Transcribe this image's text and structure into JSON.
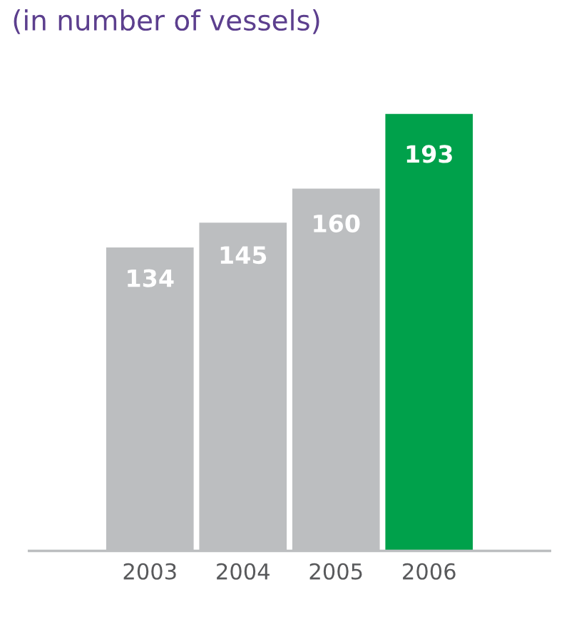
{
  "chart_data": {
    "type": "bar",
    "title": "(in number of vessels)",
    "categories": [
      "2003",
      "2004",
      "2005",
      "2006"
    ],
    "values": [
      134,
      145,
      160,
      193
    ],
    "colors": [
      "#bcbec0",
      "#bcbec0",
      "#bcbec0",
      "#00a14b"
    ],
    "data_labels": true,
    "grid": false,
    "legend": false
  }
}
